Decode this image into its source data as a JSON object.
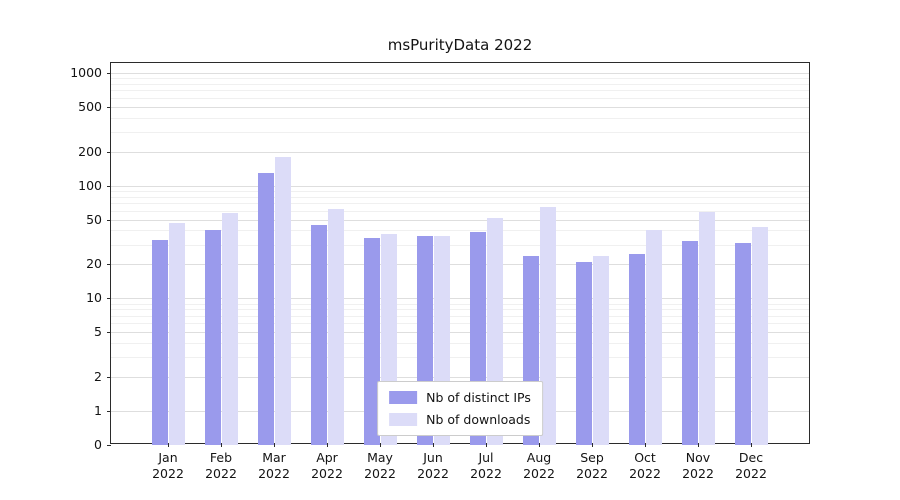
{
  "chart_data": {
    "type": "bar",
    "title": "msPurityData 2022",
    "categories": [
      "Jan",
      "Feb",
      "Mar",
      "Apr",
      "May",
      "Jun",
      "Jul",
      "Aug",
      "Sep",
      "Oct",
      "Nov",
      "Dec"
    ],
    "category_year": "2022",
    "series": [
      {
        "name": "Nb of distinct IPs",
        "color": "#9a9aec",
        "values": [
          33,
          40,
          130,
          45,
          34,
          36,
          39,
          24,
          21,
          25,
          32,
          31
        ]
      },
      {
        "name": "Nb of downloads",
        "color": "#dcdcf8",
        "values": [
          47,
          57,
          180,
          62,
          37,
          36,
          52,
          65,
          24,
          40,
          58,
          43
        ]
      }
    ],
    "yticks": [
      0,
      1,
      2,
      5,
      10,
      20,
      50,
      100,
      200,
      500,
      1000
    ],
    "minor_yticks": [
      3,
      4,
      6,
      7,
      8,
      9,
      30,
      40,
      60,
      70,
      80,
      90,
      300,
      400,
      600,
      700,
      800,
      900
    ],
    "yscale": "symlog",
    "ylim": [
      0,
      1000
    ],
    "grid": "horizontal",
    "legend_position": "bottom-center",
    "colors": {
      "bar_dark": "#9a9aec",
      "bar_light": "#dcdcf8",
      "grid_major": "#dedede",
      "grid_minor": "#f0f0f0",
      "axis": "#2b2b2b",
      "background": "#ffffff"
    }
  }
}
